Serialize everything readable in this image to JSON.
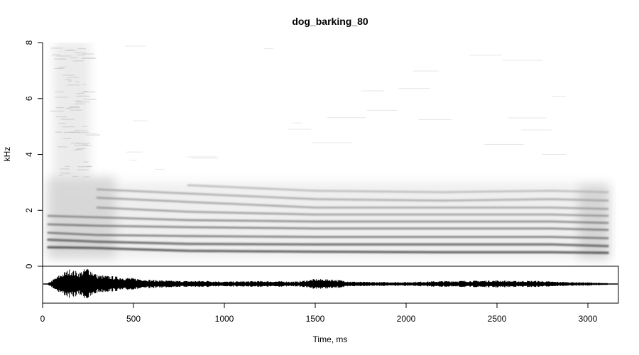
{
  "chart_data": {
    "type": "spectrogram",
    "title": "dog_barking_80",
    "xlabel": "Time, ms",
    "ylabel": "kHz",
    "xlim": [
      0,
      3200
    ],
    "ylim": [
      0,
      8
    ],
    "x_ticks": [
      0,
      500,
      1000,
      1500,
      2000,
      2500,
      3000
    ],
    "y_ticks": [
      0,
      2,
      4,
      6,
      8
    ],
    "x_tick_labels": [
      "0",
      "500",
      "1000",
      "1500",
      "2000",
      "2500",
      "3000"
    ],
    "y_tick_labels": [
      "0",
      "2",
      "4",
      "6",
      "8"
    ],
    "duration_ms": 3120,
    "harmonic_tracks_khz": [
      {
        "t": [
          30,
          300,
          800,
          1500,
          2200,
          2800,
          3110
        ],
        "f": [
          0.68,
          0.65,
          0.55,
          0.52,
          0.5,
          0.5,
          0.48
        ]
      },
      {
        "t": [
          30,
          300,
          800,
          1500,
          2200,
          2800,
          3110
        ],
        "f": [
          0.95,
          0.88,
          0.8,
          0.78,
          0.78,
          0.78,
          0.72
        ]
      },
      {
        "t": [
          30,
          300,
          800,
          1500,
          2200,
          2800,
          3110
        ],
        "f": [
          1.2,
          1.12,
          1.08,
          1.05,
          1.05,
          1.05,
          1.0
        ]
      },
      {
        "t": [
          30,
          300,
          800,
          1500,
          2200,
          2800,
          3110
        ],
        "f": [
          1.5,
          1.45,
          1.4,
          1.35,
          1.35,
          1.35,
          1.3
        ]
      },
      {
        "t": [
          30,
          300,
          800,
          1500,
          2200,
          2800,
          3110
        ],
        "f": [
          1.8,
          1.75,
          1.65,
          1.6,
          1.6,
          1.6,
          1.55
        ]
      },
      {
        "t": [
          300,
          800,
          1500,
          2200,
          2800,
          3110
        ],
        "f": [
          2.1,
          1.95,
          1.85,
          1.85,
          1.85,
          1.8
        ]
      },
      {
        "t": [
          300,
          800,
          1500,
          2200,
          2800,
          3110
        ],
        "f": [
          2.45,
          2.3,
          2.1,
          2.1,
          2.1,
          2.05
        ]
      },
      {
        "t": [
          300,
          800,
          1500,
          2200,
          2800,
          3110
        ],
        "f": [
          2.75,
          2.6,
          2.4,
          2.35,
          2.4,
          2.35
        ]
      },
      {
        "t": [
          800,
          1500,
          2200,
          2800,
          3110
        ],
        "f": [
          2.9,
          2.7,
          2.65,
          2.7,
          2.65
        ]
      }
    ],
    "waveform_envelope": {
      "t": [
        30,
        100,
        150,
        200,
        250,
        300,
        400,
        500,
        600,
        700,
        800,
        900,
        1000,
        1200,
        1400,
        1500,
        1600,
        1700,
        1800,
        2000,
        2200,
        2400,
        2500,
        2600,
        2700,
        2800,
        2900,
        3000,
        3110
      ],
      "amp": [
        0.05,
        0.6,
        0.9,
        0.7,
        1.0,
        0.55,
        0.45,
        0.35,
        0.25,
        0.2,
        0.18,
        0.2,
        0.15,
        0.18,
        0.15,
        0.3,
        0.28,
        0.15,
        0.12,
        0.12,
        0.18,
        0.2,
        0.22,
        0.18,
        0.2,
        0.15,
        0.12,
        0.1,
        0.05
      ]
    }
  }
}
